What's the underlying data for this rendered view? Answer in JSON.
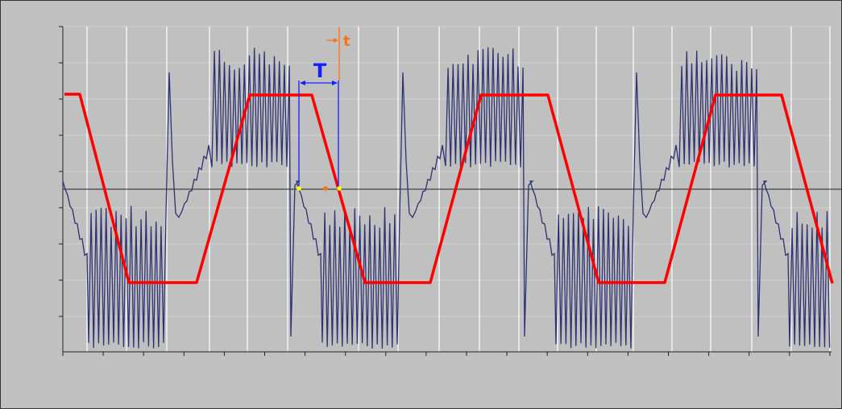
{
  "annotations": {
    "period_label": "T",
    "delay_label": "t"
  }
}
